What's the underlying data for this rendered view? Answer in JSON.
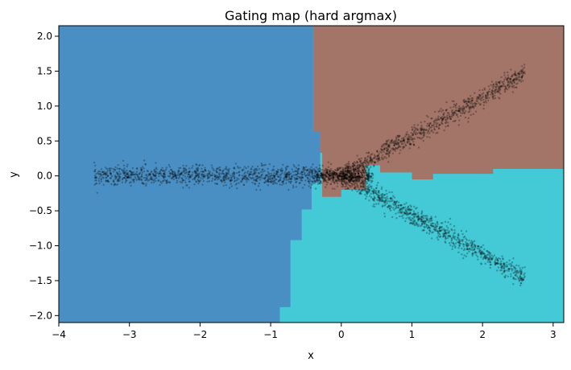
{
  "chart_data": {
    "type": "scatter",
    "title": "Gating map (hard argmax)",
    "xlabel": "x",
    "ylabel": "y",
    "xlim": [
      -4.0,
      3.15
    ],
    "ylim": [
      -2.1,
      2.15
    ],
    "xticks": [
      -4,
      -3,
      -2,
      -1,
      0,
      1,
      2,
      3
    ],
    "yticks": [
      -2.0,
      -1.5,
      -1.0,
      -0.5,
      0.0,
      0.5,
      1.0,
      1.5,
      2.0
    ],
    "xtick_labels": [
      "−4",
      "−3",
      "−2",
      "−1",
      "0",
      "1",
      "2",
      "3"
    ],
    "ytick_labels": [
      "−2.0",
      "−1.5",
      "−1.0",
      "−0.5",
      "0.0",
      "0.5",
      "1.0",
      "1.5",
      "2.0"
    ],
    "grid": false,
    "background_regions": {
      "colors": {
        "blue": "#4a8fc3",
        "brown": "#a37568",
        "cyan": "#44c9d6"
      },
      "blue_right_boundary": [
        [
          -2.1,
          -0.87
        ],
        [
          -1.88,
          -0.87
        ],
        [
          -1.88,
          -0.72
        ],
        [
          -1.82,
          -0.72
        ],
        [
          -1.82,
          -0.72
        ],
        [
          -0.92,
          -0.72
        ],
        [
          -0.92,
          -0.58
        ],
        [
          -0.72,
          -0.58
        ],
        [
          -0.72,
          -0.48
        ],
        [
          -0.52,
          -0.48
        ],
        [
          -0.52,
          -0.4
        ],
        [
          -0.35,
          -0.4
        ],
        [
          -0.35,
          -0.32
        ],
        [
          -0.08,
          -0.32
        ],
        [
          -0.08,
          -0.27
        ],
        [
          0.0,
          -0.27
        ],
        [
          0.0,
          -0.28
        ],
        [
          0.08,
          -0.28
        ],
        [
          0.08,
          -0.27
        ],
        [
          0.35,
          -0.27
        ],
        [
          0.35,
          -0.4
        ],
        [
          0.62,
          -0.4
        ],
        [
          0.62,
          -0.44
        ],
        [
          2.15,
          -0.44
        ]
      ],
      "brown_cyan_boundary": [
        [
          -0.27,
          0.0
        ],
        [
          -0.27,
          0.42
        ],
        [
          -0.34,
          0.42
        ],
        [
          -0.34,
          0.35
        ],
        [
          -0.3,
          0.35
        ],
        [
          -0.3,
          0.15
        ],
        [
          0.55,
          0.15
        ],
        [
          0.55,
          0.05
        ],
        [
          1.0,
          0.05
        ],
        [
          1.0,
          -0.05
        ],
        [
          1.3,
          -0.05
        ],
        [
          1.3,
          0.03
        ],
        [
          2.15,
          0.03
        ],
        [
          2.15,
          0.1
        ],
        [
          3.15,
          0.1
        ]
      ]
    },
    "series": [
      {
        "label": "",
        "color": "#000000",
        "marker_size": 1.2,
        "clusters": [
          {
            "x_range": [
              -3.5,
              0.4
            ],
            "slope": 0.0,
            "intercept": 0.0,
            "noise": 0.07,
            "count": 1300
          },
          {
            "x_range": [
              0.0,
              2.6
            ],
            "slope": 0.56,
            "intercept": 0.0,
            "noise": 0.07,
            "count": 900
          },
          {
            "x_range": [
              0.0,
              2.6
            ],
            "slope": -0.56,
            "intercept": 0.0,
            "noise": 0.07,
            "count": 900
          },
          {
            "x_range": [
              -0.35,
              0.45
            ],
            "slope": 0.0,
            "intercept": 0.0,
            "noise": 0.05,
            "count": 350
          }
        ]
      }
    ]
  }
}
